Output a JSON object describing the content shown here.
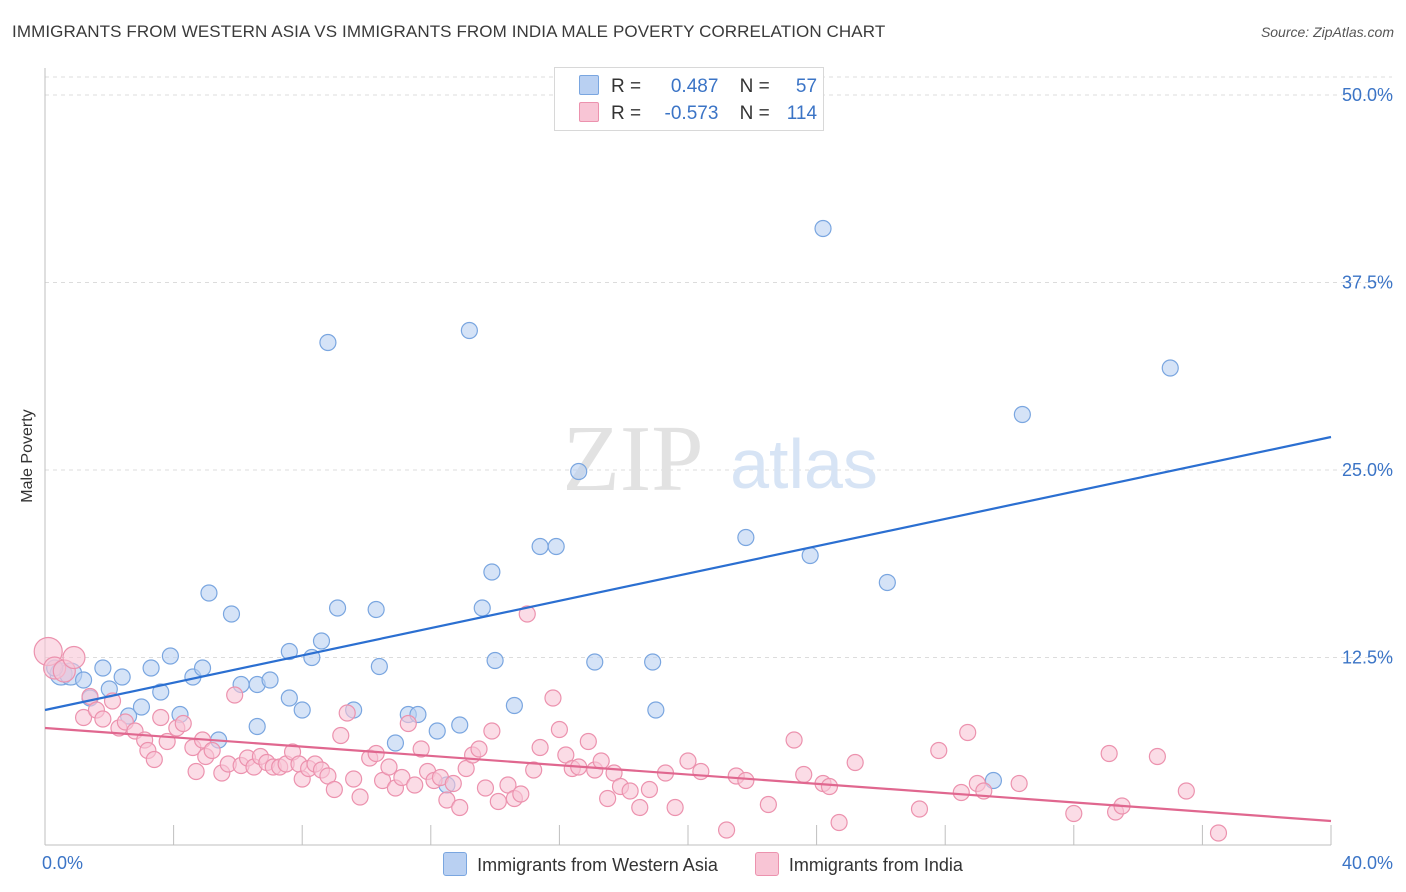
{
  "title": "IMMIGRANTS FROM WESTERN ASIA VS IMMIGRANTS FROM INDIA MALE POVERTY CORRELATION CHART",
  "source": "Source: ZipAtlas.com",
  "watermark": {
    "zip": "ZIP",
    "atlas": "atlas"
  },
  "legend": {
    "r_label": "R =",
    "n_label": "N =",
    "rows": [
      {
        "name": "Immigrants from Western Asia",
        "r": "0.487",
        "n": "57",
        "fill": "#b9d0f2",
        "stroke": "#7aa6e0"
      },
      {
        "name": "Immigrants from India",
        "r": "-0.573",
        "n": "114",
        "fill": "#f8c5d5",
        "stroke": "#ec92ae"
      }
    ]
  },
  "chart_data": {
    "type": "scatter",
    "title": "IMMIGRANTS FROM WESTERN ASIA VS IMMIGRANTS FROM INDIA MALE POVERTY CORRELATION CHART",
    "xlabel": "",
    "ylabel": "Male Poverty",
    "xlim": [
      0,
      40
    ],
    "ylim": [
      0,
      50
    ],
    "x_tick_labels": [
      {
        "value": 0,
        "label": "0.0%"
      },
      {
        "value": 40,
        "label": "40.0%"
      }
    ],
    "y_tick_labels": [
      {
        "value": 12.5,
        "label": "12.5%"
      },
      {
        "value": 25,
        "label": "25.0%"
      },
      {
        "value": 37.5,
        "label": "37.5%"
      },
      {
        "value": 50,
        "label": "50.0%"
      }
    ],
    "series": [
      {
        "name": "Immigrants from Western Asia",
        "color": "#7aa6e0",
        "fill": "#b9d0f2",
        "trend": {
          "color": "#2b6fd1",
          "x0": 0,
          "y0": 9.0,
          "x1": 40,
          "y1": 27.2
        },
        "points": [
          [
            0.5,
            11.4
          ],
          [
            0.8,
            11.4
          ],
          [
            1.8,
            11.8
          ],
          [
            1.4,
            9.8
          ],
          [
            2.0,
            10.4
          ],
          [
            2.4,
            11.2
          ],
          [
            2.6,
            8.6
          ],
          [
            3.0,
            9.2
          ],
          [
            3.3,
            11.8
          ],
          [
            3.6,
            10.2
          ],
          [
            3.9,
            12.6
          ],
          [
            4.2,
            8.7
          ],
          [
            4.6,
            11.2
          ],
          [
            4.9,
            11.8
          ],
          [
            5.1,
            16.8
          ],
          [
            5.4,
            7.0
          ],
          [
            5.8,
            15.4
          ],
          [
            6.1,
            10.7
          ],
          [
            6.6,
            10.7
          ],
          [
            6.6,
            7.9
          ],
          [
            7.0,
            11.0
          ],
          [
            7.6,
            12.9
          ],
          [
            7.6,
            9.8
          ],
          [
            8.0,
            9.0
          ],
          [
            8.3,
            12.5
          ],
          [
            8.6,
            13.6
          ],
          [
            8.8,
            33.5
          ],
          [
            9.1,
            15.8
          ],
          [
            9.6,
            9.0
          ],
          [
            10.3,
            15.7
          ],
          [
            10.4,
            11.9
          ],
          [
            10.9,
            6.8
          ],
          [
            11.3,
            8.7
          ],
          [
            11.6,
            8.7
          ],
          [
            12.2,
            7.6
          ],
          [
            12.5,
            4.0
          ],
          [
            12.9,
            8.0
          ],
          [
            13.2,
            34.3
          ],
          [
            13.6,
            15.8
          ],
          [
            13.9,
            18.2
          ],
          [
            14.0,
            12.3
          ],
          [
            14.6,
            9.3
          ],
          [
            15.4,
            19.9
          ],
          [
            15.9,
            19.9
          ],
          [
            16.6,
            24.9
          ],
          [
            17.1,
            12.2
          ],
          [
            18.9,
            12.2
          ],
          [
            19.0,
            9.0
          ],
          [
            21.8,
            20.5
          ],
          [
            23.8,
            19.3
          ],
          [
            24.2,
            41.1
          ],
          [
            26.2,
            17.5
          ],
          [
            29.5,
            4.3
          ],
          [
            30.4,
            28.7
          ],
          [
            35.0,
            31.8
          ],
          [
            1.2,
            11.0
          ],
          [
            0.3,
            11.8
          ]
        ]
      },
      {
        "name": "Immigrants from India",
        "color": "#ec92ae",
        "fill": "#f8c5d5",
        "trend": {
          "color": "#e0678f",
          "x0": 0,
          "y0": 7.8,
          "x1": 40,
          "y1": 1.6
        },
        "points": [
          [
            0.1,
            12.9
          ],
          [
            0.3,
            11.8
          ],
          [
            0.6,
            11.6
          ],
          [
            0.9,
            12.5
          ],
          [
            1.2,
            8.5
          ],
          [
            1.4,
            9.9
          ],
          [
            1.6,
            9.0
          ],
          [
            1.8,
            8.4
          ],
          [
            2.1,
            9.6
          ],
          [
            2.3,
            7.8
          ],
          [
            2.5,
            8.2
          ],
          [
            2.8,
            7.6
          ],
          [
            3.1,
            7.0
          ],
          [
            3.2,
            6.3
          ],
          [
            3.4,
            5.7
          ],
          [
            3.6,
            8.5
          ],
          [
            3.8,
            6.9
          ],
          [
            4.1,
            7.8
          ],
          [
            4.3,
            8.1
          ],
          [
            4.6,
            6.5
          ],
          [
            4.7,
            4.9
          ],
          [
            4.9,
            7.0
          ],
          [
            5.0,
            5.9
          ],
          [
            5.2,
            6.3
          ],
          [
            5.5,
            4.8
          ],
          [
            5.7,
            5.4
          ],
          [
            5.9,
            10.0
          ],
          [
            6.1,
            5.3
          ],
          [
            6.3,
            5.8
          ],
          [
            6.5,
            5.2
          ],
          [
            6.7,
            5.9
          ],
          [
            6.9,
            5.5
          ],
          [
            7.1,
            5.2
          ],
          [
            7.3,
            5.2
          ],
          [
            7.5,
            5.4
          ],
          [
            7.7,
            6.2
          ],
          [
            7.9,
            5.4
          ],
          [
            8.0,
            4.4
          ],
          [
            8.2,
            5.1
          ],
          [
            8.4,
            5.4
          ],
          [
            8.6,
            5.0
          ],
          [
            8.8,
            4.6
          ],
          [
            9.0,
            3.7
          ],
          [
            9.2,
            7.3
          ],
          [
            9.4,
            8.8
          ],
          [
            9.6,
            4.4
          ],
          [
            9.8,
            3.2
          ],
          [
            10.1,
            5.8
          ],
          [
            10.3,
            6.1
          ],
          [
            10.5,
            4.3
          ],
          [
            10.7,
            5.2
          ],
          [
            10.9,
            3.8
          ],
          [
            11.1,
            4.5
          ],
          [
            11.3,
            8.1
          ],
          [
            11.5,
            4.0
          ],
          [
            11.7,
            6.4
          ],
          [
            11.9,
            4.9
          ],
          [
            12.1,
            4.3
          ],
          [
            12.3,
            4.5
          ],
          [
            12.5,
            3.0
          ],
          [
            12.7,
            4.1
          ],
          [
            12.9,
            2.5
          ],
          [
            13.1,
            5.1
          ],
          [
            13.3,
            6.0
          ],
          [
            13.5,
            6.4
          ],
          [
            13.7,
            3.8
          ],
          [
            13.9,
            7.6
          ],
          [
            14.1,
            2.9
          ],
          [
            14.4,
            4.0
          ],
          [
            14.6,
            3.1
          ],
          [
            14.8,
            3.4
          ],
          [
            15.0,
            15.4
          ],
          [
            15.2,
            5.0
          ],
          [
            15.4,
            6.5
          ],
          [
            15.8,
            9.8
          ],
          [
            16.0,
            7.7
          ],
          [
            16.2,
            6.0
          ],
          [
            16.4,
            5.1
          ],
          [
            16.6,
            5.2
          ],
          [
            16.9,
            6.9
          ],
          [
            17.1,
            5.0
          ],
          [
            17.3,
            5.6
          ],
          [
            17.5,
            3.1
          ],
          [
            17.7,
            4.8
          ],
          [
            17.9,
            3.9
          ],
          [
            18.2,
            3.6
          ],
          [
            18.5,
            2.5
          ],
          [
            18.8,
            3.7
          ],
          [
            19.3,
            4.8
          ],
          [
            19.6,
            2.5
          ],
          [
            20.0,
            5.6
          ],
          [
            20.4,
            4.9
          ],
          [
            21.2,
            1.0
          ],
          [
            21.5,
            4.6
          ],
          [
            21.8,
            4.3
          ],
          [
            22.5,
            2.7
          ],
          [
            23.3,
            7.0
          ],
          [
            23.6,
            4.7
          ],
          [
            24.2,
            4.1
          ],
          [
            24.7,
            1.5
          ],
          [
            25.2,
            5.5
          ],
          [
            27.2,
            2.4
          ],
          [
            27.8,
            6.3
          ],
          [
            28.5,
            3.5
          ],
          [
            28.7,
            7.5
          ],
          [
            29.0,
            4.1
          ],
          [
            29.2,
            3.6
          ],
          [
            30.3,
            4.1
          ],
          [
            32.0,
            2.1
          ],
          [
            33.1,
            6.1
          ],
          [
            33.3,
            2.2
          ],
          [
            33.5,
            2.6
          ],
          [
            34.6,
            5.9
          ],
          [
            35.5,
            3.6
          ],
          [
            36.5,
            0.8
          ],
          [
            24.4,
            3.9
          ]
        ]
      }
    ]
  }
}
